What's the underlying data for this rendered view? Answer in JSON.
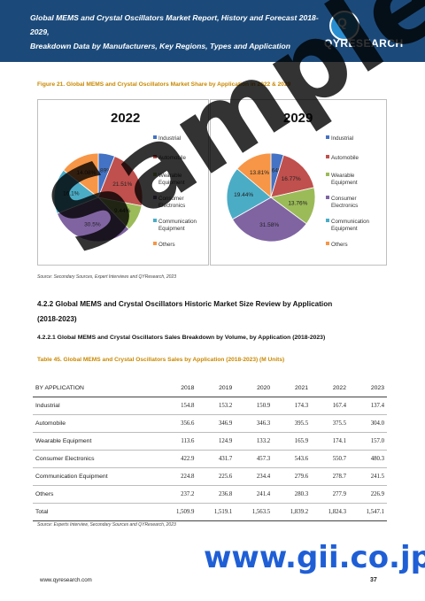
{
  "header": {
    "title_line1": "Global MEMS and Crystal Oscillators Market Report, History and Forecast 2018-2029,",
    "title_line2": "Breakdown Data by Manufacturers, Key Regions, Types and Application",
    "logo_text": "QYRESEARCH",
    "logo_letter": "Q"
  },
  "figure": {
    "caption": "Figure 21.   Global MEMS and Crystal Oscillators Market Share by Application in 2022 & 2029",
    "source": "Source: Secondary Sources, Expert Interviews and QYResearch, 2023"
  },
  "chart_data": [
    {
      "type": "pie",
      "title": "2022",
      "categories": [
        "Industrial",
        "Automobile",
        "Wearable Equipment",
        "Consumer Electronics",
        "Communication Equipment",
        "Others"
      ],
      "values": [
        5.89,
        21.51,
        9.44,
        30.5,
        16.1,
        14.08
      ],
      "labels": [
        "5.89%",
        "21.51%",
        "9.44%",
        "30.5%",
        "16.1%",
        "14.08%"
      ],
      "colors": [
        "#4472c4",
        "#c0504d",
        "#9bbb59",
        "#8064a2",
        "#4bacc6",
        "#f79646"
      ]
    },
    {
      "type": "pie",
      "title": "2029",
      "categories": [
        "Industrial",
        "Automobile",
        "Wearable Equipment",
        "Consumer Electronics",
        "Communication Equipment",
        "Others"
      ],
      "values": [
        4.64,
        16.77,
        13.76,
        31.58,
        19.44,
        13.81
      ],
      "labels": [
        "4.64%",
        "16.77%",
        "13.76%",
        "31.58%",
        "19.44%",
        "13.81%"
      ],
      "colors": [
        "#4472c4",
        "#c0504d",
        "#9bbb59",
        "#8064a2",
        "#4bacc6",
        "#f79646"
      ]
    }
  ],
  "legend": [
    "Industrial",
    "Automobile",
    "Wearable Equipment",
    "Consumer Electronics",
    "Communication Equipment",
    "Others"
  ],
  "section": {
    "title_line1": "4.2.2  Global MEMS and Crystal Oscillators Historic Market Size Review by Application",
    "title_line2": "(2018-2023)",
    "subtitle": "4.2.2.1  Global MEMS and Crystal Oscillators Sales Breakdown by Volume, by Application (2018-2023)"
  },
  "table": {
    "caption": "Table 45.   Global MEMS and Crystal Oscillators Sales by Application (2018-2023) (M Units)",
    "headers": [
      "BY APPLICATION",
      "2018",
      "2019",
      "2020",
      "2021",
      "2022",
      "2023"
    ],
    "rows": [
      [
        "Industrial",
        "154.8",
        "153.2",
        "150.9",
        "174.3",
        "167.4",
        "137.4"
      ],
      [
        "Automobile",
        "356.6",
        "346.9",
        "346.3",
        "395.5",
        "375.5",
        "304.0"
      ],
      [
        "Wearable Equipment",
        "113.6",
        "124.9",
        "133.2",
        "165.9",
        "174.1",
        "157.0"
      ],
      [
        "Consumer Electronics",
        "422.9",
        "431.7",
        "457.3",
        "543.6",
        "550.7",
        "480.3"
      ],
      [
        "Communication Equipment",
        "224.8",
        "225.6",
        "234.4",
        "279.6",
        "278.7",
        "241.5"
      ],
      [
        "Others",
        "237.2",
        "236.8",
        "241.4",
        "280.3",
        "277.9",
        "226.9"
      ],
      [
        "Total",
        "1,509.9",
        "1,519.1",
        "1,563.5",
        "1,839.2",
        "1,824.3",
        "1,547.1"
      ]
    ],
    "source": "Source: Experts Interview, Secondary Sources and QYResearch, 2023"
  },
  "footer": {
    "url": "www.qyresearch.com",
    "page": "37"
  },
  "watermark": {
    "text": "Sample",
    "url": "www.gii.co.jp"
  }
}
